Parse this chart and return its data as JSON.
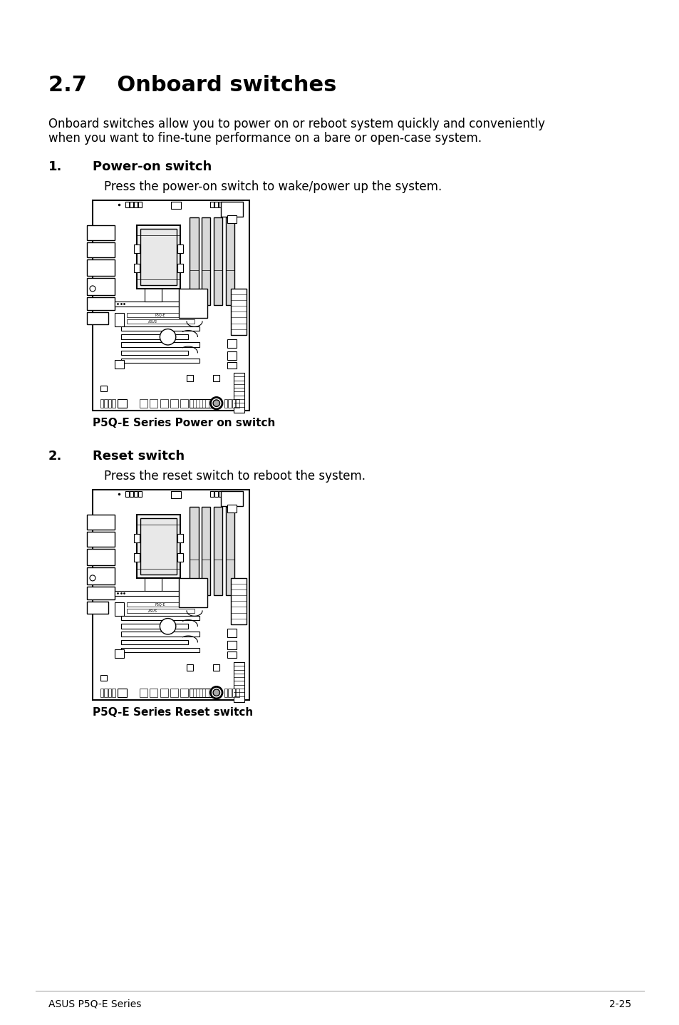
{
  "bg_color": "#ffffff",
  "text_color": "#000000",
  "title": "2.7    Onboard switches",
  "intro_line1": "Onboard switches allow you to power on or reboot system quickly and conveniently",
  "intro_line2": "when you want to fine-tune performance on a bare or open-case system.",
  "section1_num": "1.",
  "section1_title": "Power-on switch",
  "section1_desc": "Press the power-on switch to wake/power up the system.",
  "section1_caption": "P5Q-E Series Power on switch",
  "section2_num": "2.",
  "section2_title": "Reset switch",
  "section2_desc": "Press the reset switch to reboot the system.",
  "section2_caption": "P5Q-E Series Reset switch",
  "footer_left": "ASUS P5Q-E Series",
  "footer_right": "2-25"
}
